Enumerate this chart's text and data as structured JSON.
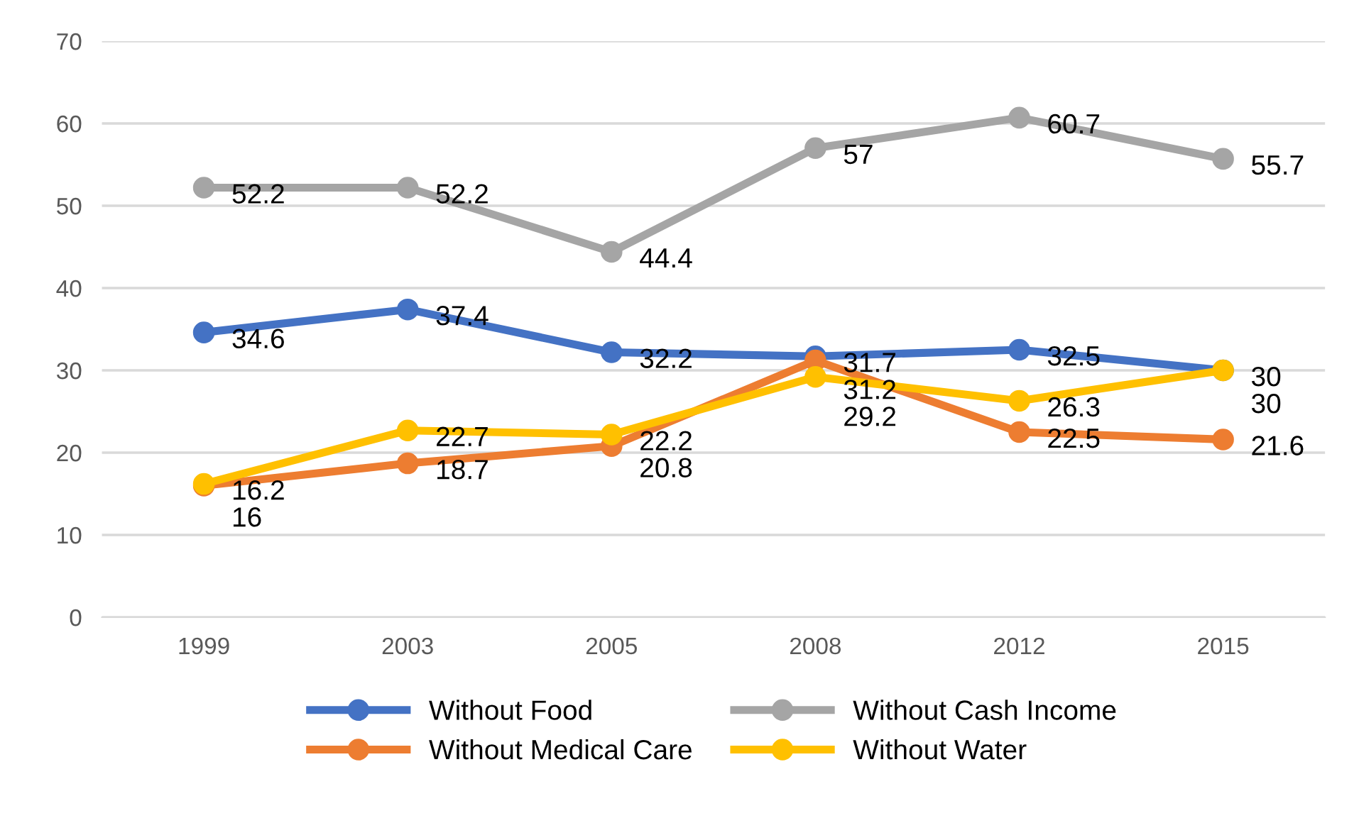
{
  "chart_data": {
    "type": "line",
    "categories": [
      "1999",
      "2003",
      "2005",
      "2008",
      "2012",
      "2015"
    ],
    "series": [
      {
        "name": "Without Food",
        "color": "#4472c4",
        "values": [
          34.6,
          37.4,
          32.2,
          31.7,
          32.5,
          30
        ]
      },
      {
        "name": "Without Medical Care",
        "color": "#ed7d31",
        "values": [
          16,
          18.7,
          20.8,
          31.2,
          22.5,
          21.6
        ]
      },
      {
        "name": "Without Cash Income",
        "color": "#a5a5a5",
        "values": [
          52.2,
          52.2,
          44.4,
          57,
          60.7,
          55.7
        ]
      },
      {
        "name": "Without Water",
        "color": "#ffc000",
        "values": [
          16.2,
          22.7,
          22.2,
          29.2,
          26.3,
          30
        ]
      }
    ],
    "ylim": [
      0,
      70
    ],
    "yticks": [
      0,
      10,
      20,
      30,
      40,
      50,
      60,
      70
    ],
    "grid": "y",
    "legend": "bottom",
    "marker": "circle",
    "line_style": "solid",
    "data_labels": true
  }
}
